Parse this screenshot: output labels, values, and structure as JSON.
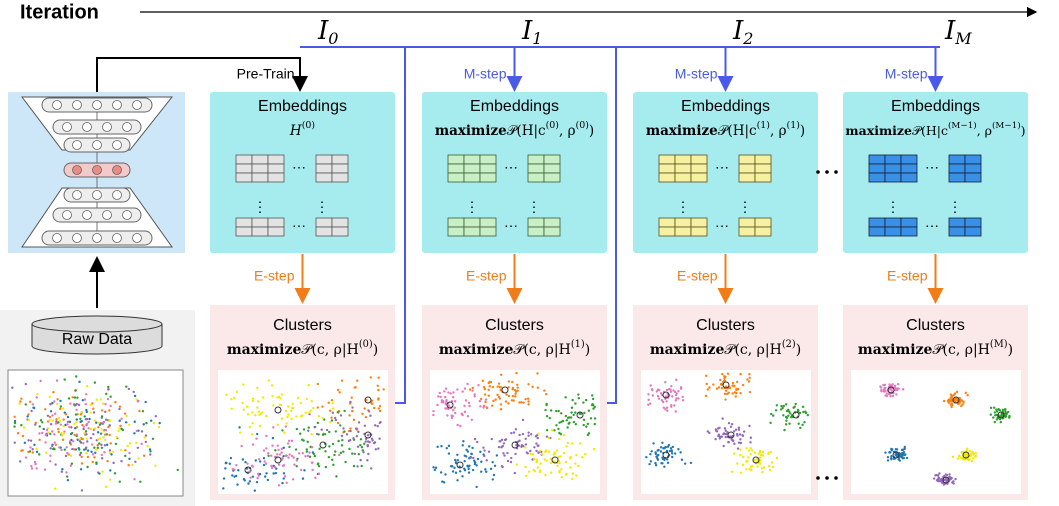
{
  "header": {
    "label": "Iteration",
    "iterations": [
      {
        "base": "I",
        "sub": "0"
      },
      {
        "base": "I",
        "sub": "1"
      },
      {
        "base": "I",
        "sub": "2"
      },
      {
        "base": "I",
        "sub": "M"
      }
    ]
  },
  "raw_data": "Raw Data",
  "columns": [
    {
      "arrow_label": "Pre-Train",
      "embeddings": {
        "title": "Embeddings",
        "formula": {
          "parts": [
            "H",
            "(0)"
          ]
        }
      },
      "e_step": "E-step",
      "clusters": {
        "title": "Clusters",
        "formula": {
          "op": "maximize",
          "parts": [
            "𝒫(c, ρ|H",
            "(0)",
            ")"
          ]
        }
      }
    },
    {
      "arrow_label": "M-step",
      "embeddings": {
        "title": "Embeddings",
        "formula": {
          "op": "maximize",
          "parts": [
            "𝒫(H|c",
            "(0)",
            ", ρ",
            "(0)",
            ")"
          ]
        }
      },
      "e_step": "E-step",
      "clusters": {
        "title": "Clusters",
        "formula": {
          "op": "maximize",
          "parts": [
            "𝒫(c, ρ|H",
            "(1)",
            ")"
          ]
        }
      }
    },
    {
      "arrow_label": "M-step",
      "embeddings": {
        "title": "Embeddings",
        "formula": {
          "op": "maximize",
          "parts": [
            "𝒫(H|c",
            "(1)",
            ", ρ",
            "(1)",
            ")"
          ]
        }
      },
      "e_step": "E-step",
      "clusters": {
        "title": "Clusters",
        "formula": {
          "op": "maximize",
          "parts": [
            "𝒫(c, ρ|H",
            "(2)",
            ")"
          ]
        }
      }
    },
    {
      "arrow_label": "M-step",
      "embeddings": {
        "title": "Embeddings",
        "formula": {
          "op": "maximize",
          "parts": [
            "𝒫(H|c",
            "(M−1)",
            ", ρ",
            "(M−1)",
            ")"
          ]
        }
      },
      "e_step": "E-step",
      "clusters": {
        "title": "Clusters",
        "formula": {
          "op": "maximize",
          "parts": [
            "𝒫(c, ρ|H",
            "(M)",
            ")"
          ]
        }
      }
    }
  ]
}
